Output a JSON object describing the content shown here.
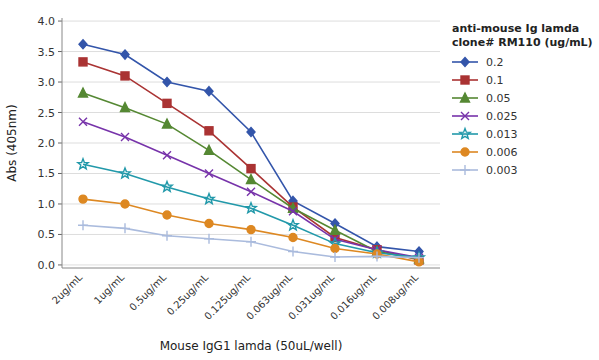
{
  "chart_data": {
    "type": "line",
    "title": "anti-mouse Ig lamda\nclone# RM110 (ug/mL)",
    "xlabel": "Mouse IgG1 lamda (50uL/well)",
    "ylabel": "Abs (405nm)",
    "categories": [
      "2ug/mL",
      "1ug/mL",
      "0.5ug/mL",
      "0.25ug/mL",
      "0.125ug/mL",
      "0.063ug/mL",
      "0.031ug/mL",
      "0.016ug/mL",
      "0.008ug/mL"
    ],
    "series": [
      {
        "name": "0.2",
        "color": "#3355aa",
        "marker": "diamond",
        "values": [
          3.62,
          3.45,
          3.0,
          2.85,
          2.18,
          1.05,
          0.68,
          0.3,
          0.22
        ]
      },
      {
        "name": "0.1",
        "color": "#aa3333",
        "marker": "square",
        "values": [
          3.33,
          3.1,
          2.65,
          2.2,
          1.58,
          0.95,
          0.45,
          0.25,
          0.08
        ]
      },
      {
        "name": "0.05",
        "color": "#558833",
        "marker": "triangle",
        "values": [
          2.82,
          2.58,
          2.31,
          1.88,
          1.4,
          0.93,
          0.57,
          0.22,
          0.1
        ]
      },
      {
        "name": "0.025",
        "color": "#7733aa",
        "marker": "x",
        "values": [
          2.35,
          2.1,
          1.8,
          1.5,
          1.2,
          0.88,
          0.42,
          0.25,
          0.12
        ]
      },
      {
        "name": "0.013",
        "color": "#2299aa",
        "marker": "star",
        "values": [
          1.65,
          1.5,
          1.28,
          1.08,
          0.93,
          0.65,
          0.35,
          0.2,
          0.12
        ]
      },
      {
        "name": "0.006",
        "color": "#dd8822",
        "marker": "circle",
        "values": [
          1.08,
          1.0,
          0.82,
          0.68,
          0.58,
          0.45,
          0.27,
          0.18,
          0.05
        ]
      },
      {
        "name": "0.003",
        "color": "#aabbdd",
        "marker": "plus",
        "values": [
          0.65,
          0.6,
          0.48,
          0.43,
          0.38,
          0.22,
          0.13,
          0.14,
          0.12
        ]
      }
    ],
    "ylim": [
      -0.05,
      4.05
    ],
    "yticks": [
      {
        "value": 0,
        "label": "0.0"
      },
      0.5,
      {
        "value": 1.0,
        "label": "1.0"
      },
      1.5,
      {
        "value": 2.0,
        "label": "2.0"
      },
      2.5,
      {
        "value": 3.0,
        "label": "3.0"
      },
      3.5,
      {
        "value": 4.0,
        "label": "4.0"
      }
    ],
    "grid": true,
    "legend": "upper right"
  }
}
